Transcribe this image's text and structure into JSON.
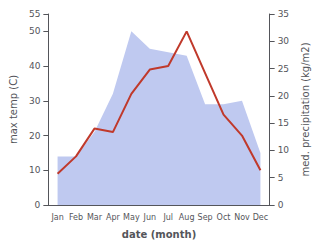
{
  "chart_data": {
    "type": "line",
    "categories": [
      "Jan",
      "Feb",
      "Mar",
      "Apr",
      "May",
      "Jun",
      "Jul",
      "Aug",
      "Sep",
      "Oct",
      "Nov",
      "Dec"
    ],
    "series": [
      {
        "type": "area",
        "color": "#bfc9f0",
        "values": [
          14,
          14,
          21,
          32,
          50,
          45,
          44,
          43,
          29,
          29,
          30,
          15
        ]
      },
      {
        "type": "line",
        "color": "#c0392b",
        "values": [
          9,
          14,
          22,
          21,
          32,
          39,
          40,
          50,
          38,
          26,
          20,
          10
        ]
      }
    ],
    "xlabel": "date (month)",
    "ylabel": "max temp (C)",
    "y2label": "med. precipitation (kg/m2)",
    "ylim": [
      0,
      55
    ],
    "yticks": [
      0,
      10,
      20,
      30,
      40,
      50
    ],
    "y2lim": [
      0,
      35
    ],
    "y2ticks": [
      0,
      5,
      10,
      15,
      20,
      25,
      30,
      35
    ],
    "grid": false
  }
}
